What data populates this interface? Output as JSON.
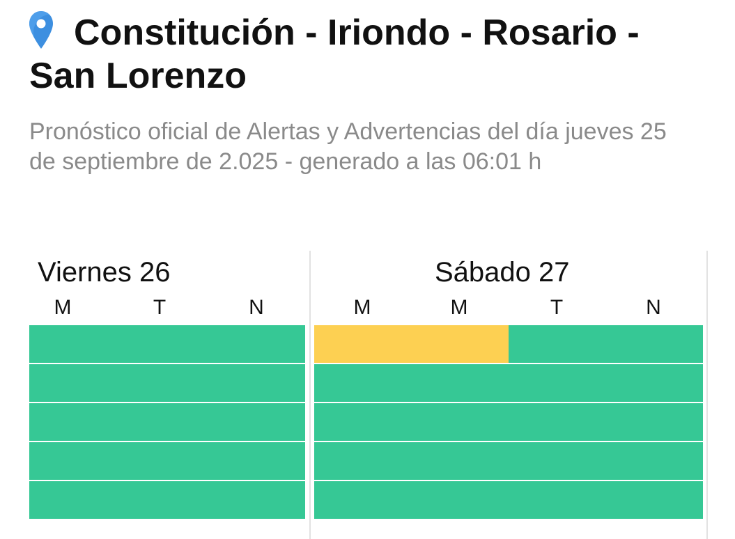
{
  "header": {
    "title": "Constitución - Iriondo - Rosario - San Lorenzo",
    "subtitle": "Pronóstico oficial de Alertas y Advertencias del día jueves 25 de septiembre de 2.025 - generado a las 06:01 h"
  },
  "colors": {
    "normal": "#36c895",
    "yellow": "#fdd052",
    "pin": "#3d8fe0"
  },
  "days": [
    {
      "title": "Viernes 26",
      "periods": [
        "M",
        "T",
        "N"
      ],
      "rows": [
        [
          "normal",
          "normal",
          "normal"
        ],
        [
          "normal",
          "normal",
          "normal"
        ],
        [
          "normal",
          "normal",
          "normal"
        ],
        [
          "normal",
          "normal",
          "normal"
        ],
        [
          "normal",
          "normal",
          "normal"
        ]
      ]
    },
    {
      "title": "Sábado 27",
      "periods": [
        "M",
        "M",
        "T",
        "N"
      ],
      "rows": [
        [
          "yellow",
          "yellow",
          "normal",
          "normal"
        ],
        [
          "normal",
          "normal",
          "normal",
          "normal"
        ],
        [
          "normal",
          "normal",
          "normal",
          "normal"
        ],
        [
          "normal",
          "normal",
          "normal",
          "normal"
        ],
        [
          "normal",
          "normal",
          "normal",
          "normal"
        ]
      ]
    }
  ]
}
